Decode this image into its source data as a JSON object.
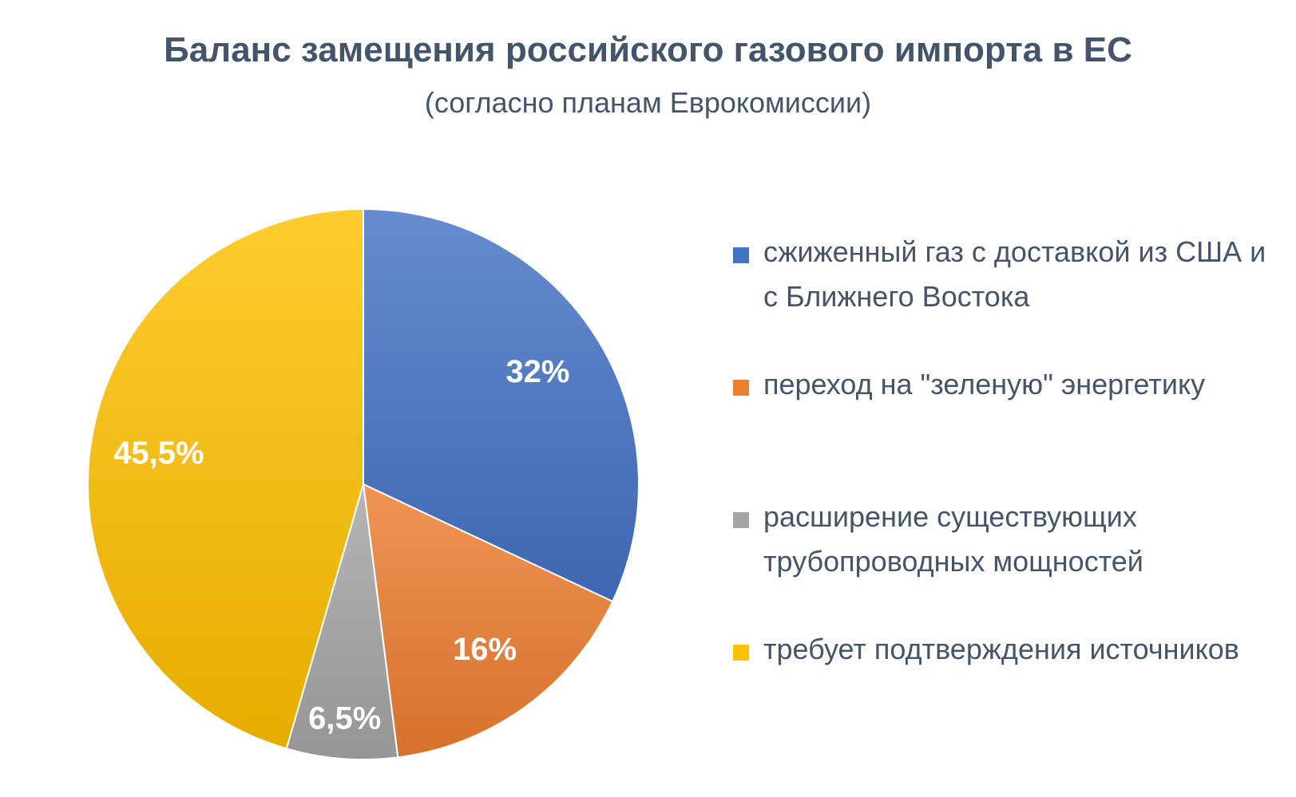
{
  "title": "Баланс замещения российского газового импорта в ЕС",
  "subtitle": "(согласно планам Еврокомиссии)",
  "chart_data": {
    "type": "pie",
    "title": "Баланс замещения российского газового импорта в ЕС",
    "subtitle": "(согласно планам Еврокомиссии)",
    "legend_position": "right",
    "slices": [
      {
        "label": "сжиженный газ с доставкой из США и с Ближнего Востока",
        "value": 32,
        "data_label": "32%",
        "color": "#4472c4"
      },
      {
        "label": "переход на \"зеленую\" энергетику",
        "value": 16,
        "data_label": "16%",
        "color": "#ed7d31"
      },
      {
        "label": "расширение существующих трубопроводных мощностей",
        "value": 6.5,
        "data_label": "6,5%",
        "color": "#a5a5a5"
      },
      {
        "label": "требует подтверждения источников",
        "value": 45.5,
        "data_label": "45,5%",
        "color": "#ffc000"
      }
    ]
  }
}
